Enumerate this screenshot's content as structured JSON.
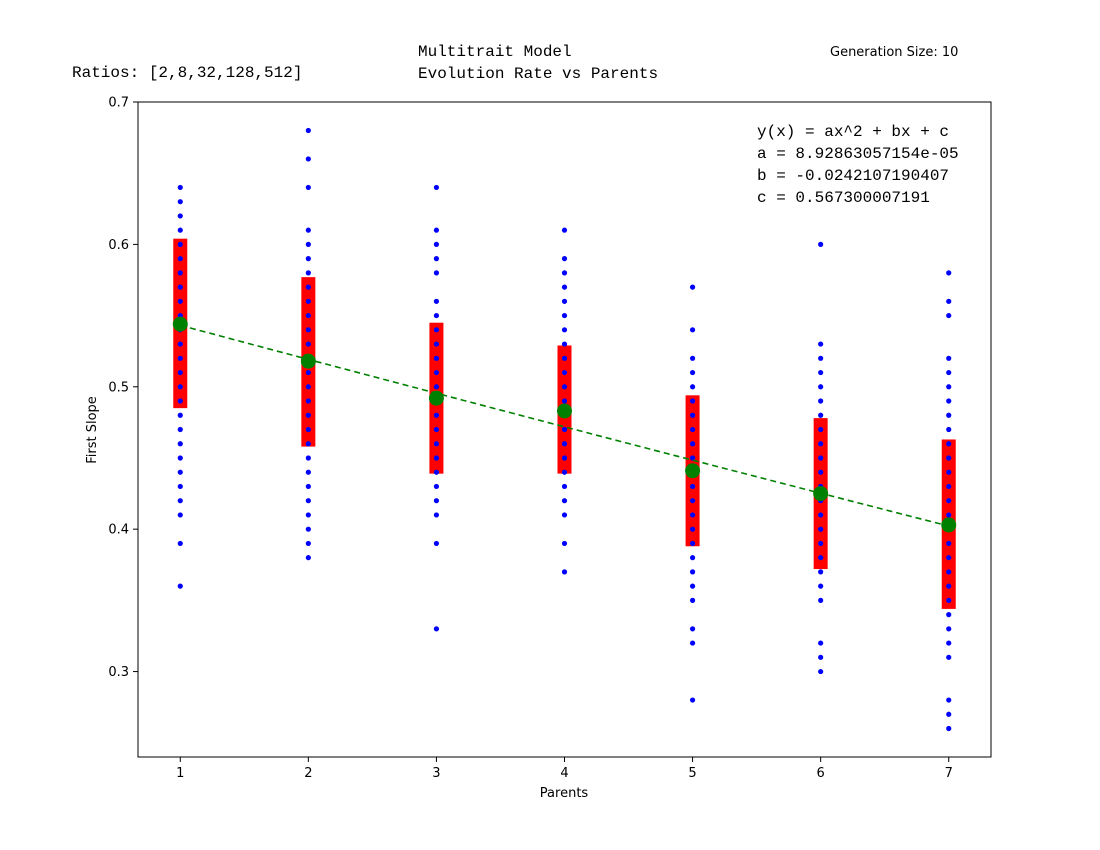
{
  "header": {
    "ratios": "Ratios: [2,8,32,128,512]",
    "title_line1": "Multitrait Model",
    "title_line2": "Evolution Rate vs Parents",
    "generation": "Generation Size: 10"
  },
  "annotation": [
    "y(x) = ax^2 + bx + c",
    "a = 8.92863057154e-05",
    "b = -0.0242107190407",
    "c = 0.567300007191"
  ],
  "chart_data": {
    "type": "scatter",
    "xlabel": "Parents",
    "ylabel": "First Slope",
    "xlim": [
      0.67,
      7.33
    ],
    "ylim": [
      0.24,
      0.7
    ],
    "x_ticks": [
      1,
      2,
      3,
      4,
      5,
      6,
      7
    ],
    "y_ticks": [
      0.3,
      0.4,
      0.5,
      0.6,
      0.7
    ],
    "y_tick_labels": [
      "0.3",
      "0.4",
      "0.5",
      "0.6",
      "0.7"
    ],
    "grid": false,
    "colors": {
      "points": "#0000ff",
      "error_bars": "#ff0000",
      "means": "#008000",
      "fit": "#008000"
    },
    "points": [
      {
        "x": 1,
        "y": [
          0.36,
          0.39,
          0.41,
          0.42,
          0.43,
          0.44,
          0.45,
          0.46,
          0.47,
          0.48,
          0.49,
          0.5,
          0.51,
          0.52,
          0.53,
          0.54,
          0.55,
          0.56,
          0.57,
          0.58,
          0.59,
          0.6,
          0.61,
          0.62,
          0.63,
          0.64
        ]
      },
      {
        "x": 2,
        "y": [
          0.38,
          0.39,
          0.4,
          0.41,
          0.42,
          0.43,
          0.44,
          0.45,
          0.46,
          0.47,
          0.48,
          0.49,
          0.5,
          0.51,
          0.52,
          0.53,
          0.54,
          0.55,
          0.56,
          0.57,
          0.58,
          0.59,
          0.6,
          0.61,
          0.64,
          0.66,
          0.68
        ]
      },
      {
        "x": 3,
        "y": [
          0.33,
          0.39,
          0.41,
          0.42,
          0.43,
          0.44,
          0.45,
          0.46,
          0.47,
          0.48,
          0.49,
          0.5,
          0.51,
          0.52,
          0.53,
          0.54,
          0.55,
          0.56,
          0.58,
          0.59,
          0.6,
          0.61,
          0.64
        ]
      },
      {
        "x": 4,
        "y": [
          0.37,
          0.39,
          0.41,
          0.42,
          0.43,
          0.44,
          0.45,
          0.46,
          0.47,
          0.48,
          0.49,
          0.5,
          0.51,
          0.52,
          0.53,
          0.54,
          0.55,
          0.56,
          0.57,
          0.58,
          0.59,
          0.61
        ]
      },
      {
        "x": 5,
        "y": [
          0.28,
          0.32,
          0.33,
          0.35,
          0.36,
          0.37,
          0.38,
          0.39,
          0.4,
          0.41,
          0.42,
          0.43,
          0.44,
          0.45,
          0.46,
          0.47,
          0.48,
          0.49,
          0.5,
          0.51,
          0.52,
          0.54,
          0.57
        ]
      },
      {
        "x": 6,
        "y": [
          0.3,
          0.31,
          0.32,
          0.35,
          0.36,
          0.37,
          0.38,
          0.39,
          0.4,
          0.41,
          0.42,
          0.43,
          0.44,
          0.45,
          0.46,
          0.47,
          0.48,
          0.49,
          0.5,
          0.51,
          0.52,
          0.53,
          0.6
        ]
      },
      {
        "x": 7,
        "y": [
          0.26,
          0.27,
          0.28,
          0.31,
          0.32,
          0.33,
          0.34,
          0.35,
          0.36,
          0.37,
          0.38,
          0.39,
          0.4,
          0.41,
          0.42,
          0.43,
          0.44,
          0.45,
          0.46,
          0.47,
          0.48,
          0.49,
          0.5,
          0.51,
          0.52,
          0.55,
          0.56,
          0.58
        ]
      }
    ],
    "means": [
      0.544,
      0.518,
      0.492,
      0.483,
      0.441,
      0.425,
      0.403
    ],
    "error_bars": [
      {
        "x": 1,
        "low": 0.485,
        "high": 0.604
      },
      {
        "x": 2,
        "low": 0.458,
        "high": 0.577
      },
      {
        "x": 3,
        "low": 0.439,
        "high": 0.545
      },
      {
        "x": 4,
        "low": 0.439,
        "high": 0.529
      },
      {
        "x": 5,
        "low": 0.388,
        "high": 0.494
      },
      {
        "x": 6,
        "low": 0.372,
        "high": 0.478
      },
      {
        "x": 7,
        "low": 0.344,
        "high": 0.463
      }
    ],
    "fit": {
      "a": 8.92863057154e-05,
      "b": -0.0242107190407,
      "c": 0.567300007191,
      "x_range": [
        1,
        7
      ]
    }
  }
}
